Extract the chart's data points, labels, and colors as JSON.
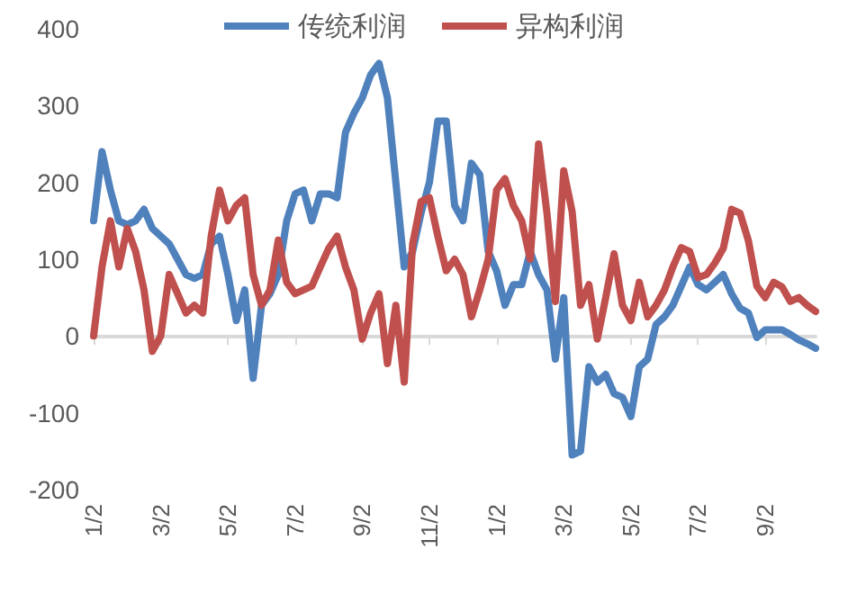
{
  "chart_data": {
    "type": "line",
    "categories": [
      "1/2",
      null,
      null,
      null,
      null,
      null,
      null,
      null,
      "3/2",
      null,
      null,
      null,
      null,
      null,
      null,
      null,
      "5/2",
      null,
      null,
      null,
      null,
      null,
      null,
      null,
      "7/2",
      null,
      null,
      null,
      null,
      null,
      null,
      null,
      "9/2",
      null,
      null,
      null,
      null,
      null,
      null,
      null,
      "11/2",
      null,
      null,
      null,
      null,
      null,
      null,
      null,
      "1/2",
      null,
      null,
      null,
      null,
      null,
      null,
      null,
      "3/2",
      null,
      null,
      null,
      null,
      null,
      null,
      null,
      "5/2",
      null,
      null,
      null,
      null,
      null,
      null,
      null,
      "7/2",
      null,
      null,
      null,
      null,
      null,
      null,
      null,
      "9/2",
      null,
      null,
      null,
      null,
      null,
      null
    ],
    "series": [
      {
        "name": "传统利润",
        "color": "#4f81bd",
        "values": [
          150,
          240,
          190,
          150,
          145,
          150,
          165,
          140,
          130,
          120,
          100,
          80,
          75,
          80,
          120,
          130,
          80,
          20,
          60,
          -55,
          40,
          55,
          80,
          150,
          185,
          190,
          150,
          185,
          185,
          180,
          265,
          290,
          310,
          340,
          355,
          310,
          200,
          90,
          110,
          160,
          200,
          280,
          280,
          170,
          150,
          225,
          210,
          110,
          85,
          40,
          67,
          67,
          110,
          80,
          60,
          -30,
          50,
          -155,
          -150,
          -40,
          -60,
          -50,
          -75,
          -80,
          -105,
          -40,
          -30,
          15,
          25,
          40,
          65,
          90,
          67,
          60,
          70,
          80,
          55,
          36,
          30,
          -2,
          8,
          8,
          8,
          2,
          -5,
          -10,
          -16
        ]
      },
      {
        "name": "异构利润",
        "color": "#c0504d",
        "values": [
          0,
          90,
          150,
          90,
          140,
          110,
          60,
          -20,
          0,
          80,
          55,
          30,
          40,
          30,
          130,
          190,
          150,
          170,
          180,
          80,
          40,
          60,
          125,
          70,
          55,
          60,
          65,
          90,
          114,
          130,
          90,
          60,
          -4,
          30,
          55,
          -36,
          40,
          -60,
          120,
          175,
          180,
          130,
          85,
          100,
          80,
          25,
          60,
          100,
          190,
          205,
          170,
          150,
          100,
          250,
          160,
          45,
          215,
          162,
          40,
          67,
          -4,
          50,
          107,
          40,
          20,
          70,
          25,
          40,
          60,
          90,
          115,
          110,
          76,
          80,
          95,
          114,
          165,
          160,
          124,
          65,
          50,
          70,
          64,
          45,
          50,
          40,
          32
        ]
      }
    ],
    "ylim": [
      -200,
      400
    ],
    "yticks": [
      -200,
      -100,
      0,
      100,
      200,
      300,
      400
    ],
    "legend": "top"
  }
}
